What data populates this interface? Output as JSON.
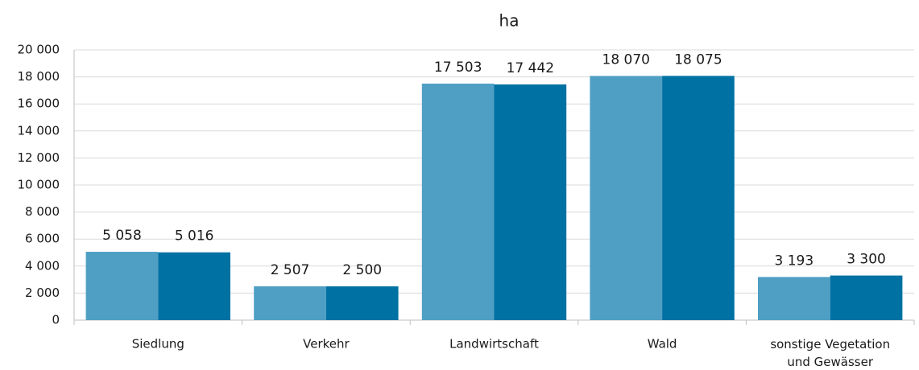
{
  "chart_data": {
    "type": "bar",
    "title": "ha",
    "categories": [
      "Siedlung",
      "Verkehr",
      "Landwirtschaft",
      "Wald",
      "sonstige Vegetation und Gewässer"
    ],
    "series": [
      {
        "color": "#4f9fc4",
        "values": [
          5058,
          2507,
          17503,
          18070,
          3193
        ],
        "value_labels": [
          "5 058",
          "2 507",
          "17 503",
          "18 070",
          "3 193"
        ]
      },
      {
        "color": "#0071a3",
        "values": [
          5016,
          2500,
          17442,
          18075,
          3300
        ],
        "value_labels": [
          "5 016",
          "2 500",
          "17 442",
          "18 075",
          "3 300"
        ]
      }
    ],
    "ylim": [
      0,
      20000
    ],
    "yticks": [
      0,
      {
        "value": 2000,
        "label": "2 000"
      },
      {
        "value": 4000,
        "label": "4 000"
      },
      {
        "value": 6000,
        "label": "6 000"
      },
      {
        "value": 8000,
        "label": "8 000"
      },
      {
        "value": 10000,
        "label": "10 000"
      },
      {
        "value": 12000,
        "label": "12 000"
      },
      {
        "value": 14000,
        "label": "14 000"
      },
      {
        "value": 16000,
        "label": "16 000"
      },
      {
        "value": 18000,
        "label": "18 000"
      },
      {
        "value": 20000,
        "label": "20 000"
      }
    ],
    "grid": true
  }
}
